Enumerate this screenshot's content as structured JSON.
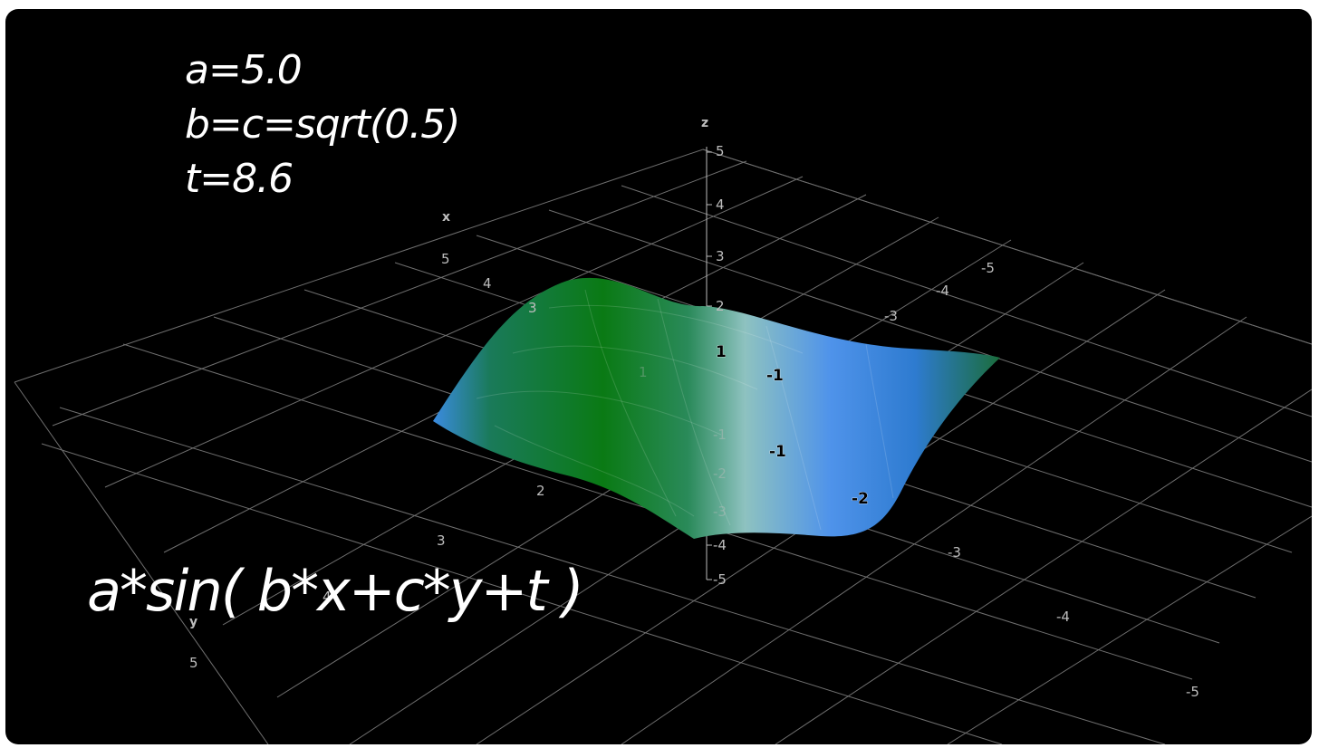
{
  "params": {
    "a": "a=5.0",
    "bc": "b=c=sqrt(0.5)",
    "t": "t=8.6"
  },
  "formula": "a*sin( b*x+c*y+t )",
  "axes": {
    "x_name": "x",
    "y_name": "y",
    "z_name": "z",
    "x_ticks": [
      "5",
      "4",
      "3",
      "2",
      "3",
      "4",
      "5"
    ],
    "neg_ticks_back": [
      "-5",
      "-4",
      "-3"
    ],
    "neg_ticks_front": [
      "-3",
      "-4",
      "-5"
    ],
    "z_ticks": [
      "5",
      "4",
      "3",
      "2",
      "1",
      "-1",
      "-2",
      "-3",
      "-4",
      "-5"
    ]
  },
  "contour_labels": [
    "1",
    "-1",
    "-1",
    "-2"
  ],
  "colors": {
    "background": "#000000",
    "surface_green": "#0a7a14",
    "surface_blue": "#3b8be0",
    "grid": "#8a8a8a"
  }
}
